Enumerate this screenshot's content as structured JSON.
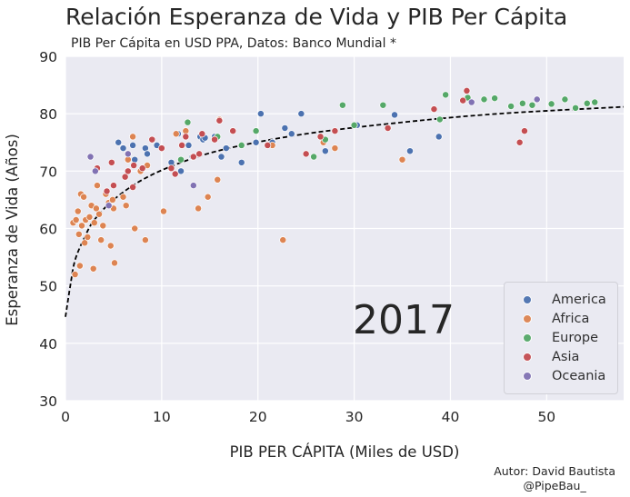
{
  "chart_data": {
    "type": "scatter",
    "title": "Relación Esperanza de Vida y PIB Per Cápita",
    "subtitle": "PIB Per Cápita en USD PPA, Datos: Banco Mundial *",
    "xlabel": "PIB PER CÁPITA (Miles de USD)",
    "ylabel": "Esperanza de Vida (Años)",
    "xlim": [
      0,
      58
    ],
    "ylim": [
      30,
      90
    ],
    "xticks": [
      0,
      10,
      20,
      30,
      40,
      50
    ],
    "yticks": [
      30,
      40,
      50,
      60,
      70,
      80,
      90
    ],
    "annotation": "2017",
    "legend_position": "lower-right",
    "series": [
      {
        "name": "America",
        "color": "#4c72b0",
        "points": [
          [
            5.5,
            75
          ],
          [
            6,
            74
          ],
          [
            7,
            74.5
          ],
          [
            7.2,
            72
          ],
          [
            8.3,
            74
          ],
          [
            8.5,
            73
          ],
          [
            9.5,
            74.5
          ],
          [
            11,
            71.5
          ],
          [
            11.7,
            76.5
          ],
          [
            12,
            70
          ],
          [
            12.8,
            74.5
          ],
          [
            13.2,
            72.5
          ],
          [
            14,
            76
          ],
          [
            14.3,
            75.5
          ],
          [
            14.5,
            75.8
          ],
          [
            15.5,
            76
          ],
          [
            16,
            79
          ],
          [
            16.2,
            72.5
          ],
          [
            16.7,
            74
          ],
          [
            18.3,
            71.5
          ],
          [
            19.8,
            75
          ],
          [
            20.3,
            80
          ],
          [
            21.5,
            75
          ],
          [
            22.8,
            77.5
          ],
          [
            23.5,
            76.5
          ],
          [
            24.5,
            80
          ],
          [
            27,
            73.5
          ],
          [
            30.3,
            78
          ],
          [
            34.2,
            79.8
          ],
          [
            35.8,
            73.5
          ],
          [
            38.8,
            76
          ]
        ]
      },
      {
        "name": "Africa",
        "color": "#dd8452",
        "points": [
          [
            0.8,
            61
          ],
          [
            1,
            52
          ],
          [
            1.1,
            61.5
          ],
          [
            1.3,
            63
          ],
          [
            1.4,
            59
          ],
          [
            1.5,
            53.5
          ],
          [
            1.6,
            66
          ],
          [
            1.7,
            60.5
          ],
          [
            1.9,
            65.5
          ],
          [
            2,
            57.5
          ],
          [
            2.1,
            61.5
          ],
          [
            2.3,
            58.5
          ],
          [
            2.5,
            62
          ],
          [
            2.7,
            64
          ],
          [
            2.9,
            53
          ],
          [
            3,
            61
          ],
          [
            3.2,
            63.5
          ],
          [
            3.3,
            67.5
          ],
          [
            3.5,
            62.5
          ],
          [
            3.7,
            58
          ],
          [
            3.9,
            60.5
          ],
          [
            4.2,
            66
          ],
          [
            4.5,
            64.5
          ],
          [
            4.7,
            57
          ],
          [
            4.9,
            65
          ],
          [
            5,
            63.5
          ],
          [
            5.1,
            54
          ],
          [
            6,
            65.5
          ],
          [
            6.3,
            64
          ],
          [
            6.5,
            72
          ],
          [
            7,
            76
          ],
          [
            7.2,
            60
          ],
          [
            7.8,
            70
          ],
          [
            8.3,
            58
          ],
          [
            8.5,
            71
          ],
          [
            10.2,
            63
          ],
          [
            11.5,
            76.5
          ],
          [
            12.5,
            77
          ],
          [
            13.8,
            63.5
          ],
          [
            14.8,
            65.5
          ],
          [
            15.8,
            68.5
          ],
          [
            16,
            79
          ],
          [
            21.5,
            74.5
          ],
          [
            22.6,
            58
          ],
          [
            26.8,
            75
          ],
          [
            28,
            74
          ],
          [
            35,
            72
          ]
        ]
      },
      {
        "name": "Europe",
        "color": "#55a868",
        "points": [
          [
            12,
            72
          ],
          [
            12.7,
            78.5
          ],
          [
            15.8,
            76
          ],
          [
            18.3,
            74.5
          ],
          [
            19.8,
            77
          ],
          [
            25.8,
            72.5
          ],
          [
            27,
            75.5
          ],
          [
            28.8,
            81.5
          ],
          [
            30,
            78
          ],
          [
            33,
            81.5
          ],
          [
            38.9,
            79
          ],
          [
            39.5,
            83.3
          ],
          [
            41.8,
            82.8
          ],
          [
            43.5,
            82.5
          ],
          [
            44.6,
            82.7
          ],
          [
            46.3,
            81.3
          ],
          [
            47.5,
            81.8
          ],
          [
            48.5,
            81.5
          ],
          [
            50.5,
            81.7
          ],
          [
            51.9,
            82.5
          ],
          [
            53,
            81
          ],
          [
            54.2,
            81.8
          ],
          [
            55,
            82
          ]
        ]
      },
      {
        "name": "Asia",
        "color": "#c44e52",
        "points": [
          [
            3.3,
            70.5
          ],
          [
            4.3,
            66.5
          ],
          [
            4.8,
            71.5
          ],
          [
            5,
            67.5
          ],
          [
            6.2,
            69
          ],
          [
            6.5,
            70
          ],
          [
            7,
            67.2
          ],
          [
            7.1,
            71
          ],
          [
            8,
            70.5
          ],
          [
            9,
            75.5
          ],
          [
            10,
            74
          ],
          [
            11,
            70.5
          ],
          [
            11.4,
            69.5
          ],
          [
            12.1,
            74.5
          ],
          [
            12.5,
            76
          ],
          [
            13.3,
            72.5
          ],
          [
            13.9,
            73
          ],
          [
            14.2,
            76.5
          ],
          [
            15.5,
            75.5
          ],
          [
            16,
            78.8
          ],
          [
            17.4,
            77
          ],
          [
            21,
            74.5
          ],
          [
            25,
            73
          ],
          [
            26.5,
            76
          ],
          [
            28,
            77
          ],
          [
            33.5,
            77.5
          ],
          [
            38.3,
            80.8
          ],
          [
            41.3,
            82.3
          ],
          [
            41.7,
            84
          ],
          [
            47.2,
            75
          ],
          [
            47.7,
            77
          ]
        ]
      },
      {
        "name": "Oceania",
        "color": "#8172b3",
        "points": [
          [
            2.6,
            72.5
          ],
          [
            3.1,
            70
          ],
          [
            4.5,
            64
          ],
          [
            6.5,
            73
          ],
          [
            13.3,
            67.5
          ],
          [
            42.2,
            82
          ],
          [
            49,
            82.5
          ]
        ]
      }
    ],
    "trend": [
      [
        0,
        44.6
      ],
      [
        0.5,
        50
      ],
      [
        1,
        54.5
      ],
      [
        2,
        58.5
      ],
      [
        3,
        61.5
      ],
      [
        5,
        65
      ],
      [
        8,
        68.5
      ],
      [
        12,
        71.5
      ],
      [
        17,
        74
      ],
      [
        25,
        76.5
      ],
      [
        35,
        78.5
      ],
      [
        45,
        80
      ],
      [
        58,
        81.2
      ]
    ]
  },
  "credit": {
    "line1": "Autor: David Bautista",
    "line2": "@PipeBau_"
  }
}
